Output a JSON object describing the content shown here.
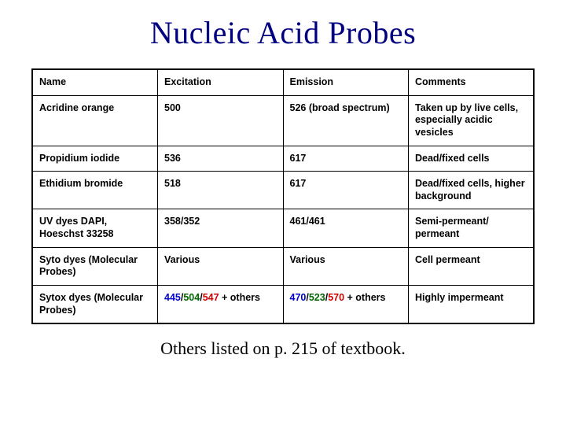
{
  "title": "Nucleic Acid Probes",
  "footer": "Others listed on p. 215 of textbook.",
  "colors": {
    "title_color": "#000080",
    "red": "#cc0000",
    "green": "#006600",
    "blue": "#0000cc",
    "border": "#000000",
    "text": "#000000",
    "background": "#ffffff"
  },
  "typography": {
    "title_font": "Times New Roman",
    "title_size_pt": 30,
    "body_font": "Arial",
    "cell_size_pt": 9.5,
    "cell_weight": "bold",
    "footer_font": "Times New Roman",
    "footer_size_pt": 17
  },
  "table": {
    "columns": [
      "Name",
      "Excitation",
      "Emission",
      "Comments"
    ],
    "column_widths_pct": [
      25,
      25,
      25,
      25
    ],
    "rows": [
      {
        "name": "Acridine orange",
        "excitation_parts": [
          {
            "text": "500"
          }
        ],
        "emission_parts": [
          {
            "text": "526 (broad spectrum)"
          }
        ],
        "comments": "Taken up by live cells, especially acidic vesicles"
      },
      {
        "name": "Propidium iodide",
        "excitation_parts": [
          {
            "text": "536"
          }
        ],
        "emission_parts": [
          {
            "text": "617"
          }
        ],
        "comments": "Dead/fixed cells"
      },
      {
        "name": "Ethidium bromide",
        "excitation_parts": [
          {
            "text": "518"
          }
        ],
        "emission_parts": [
          {
            "text": "617"
          }
        ],
        "comments": "Dead/fixed cells, higher background"
      },
      {
        "name": "UV dyes DAPI, Hoeschst 33258",
        "excitation_parts": [
          {
            "text": "358/352"
          }
        ],
        "emission_parts": [
          {
            "text": "461/461"
          }
        ],
        "comments": "Semi-permeant/ permeant"
      },
      {
        "name": "Syto dyes (Molecular Probes)",
        "excitation_parts": [
          {
            "text": "Various"
          }
        ],
        "emission_parts": [
          {
            "text": "Various"
          }
        ],
        "comments": "Cell permeant"
      },
      {
        "name": "Sytox dyes (Molecular Probes)",
        "excitation_parts": [
          {
            "text": "445",
            "color": "blue"
          },
          {
            "text": "/"
          },
          {
            "text": "504",
            "color": "green"
          },
          {
            "text": "/"
          },
          {
            "text": "547",
            "color": "red"
          },
          {
            "text": " + others"
          }
        ],
        "emission_parts": [
          {
            "text": "470",
            "color": "blue"
          },
          {
            "text": "/"
          },
          {
            "text": "523",
            "color": "green"
          },
          {
            "text": "/"
          },
          {
            "text": "570",
            "color": "red"
          },
          {
            "text": " + others"
          }
        ],
        "comments": "Highly impermeant"
      }
    ]
  }
}
